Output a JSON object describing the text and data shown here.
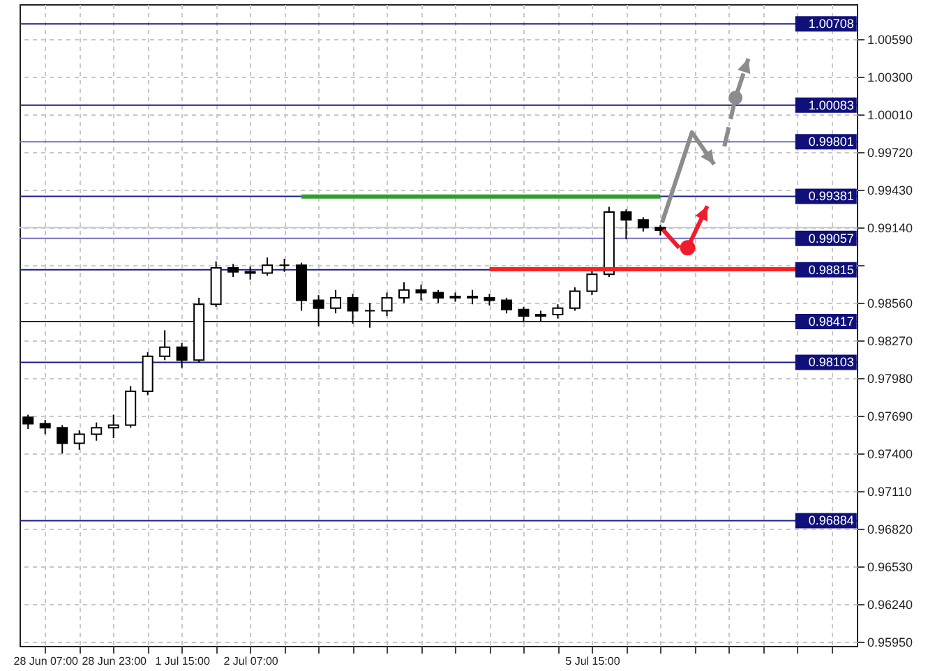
{
  "chart_data": {
    "type": "candlestick",
    "grid": true,
    "categories": [
      null,
      "28 Jun 07:00",
      null,
      null,
      null,
      "28 Jun 23:00",
      null,
      null,
      null,
      "1 Jul 15:00",
      null,
      null,
      null,
      "2 Jul 07:00",
      null,
      null,
      null,
      null,
      null,
      null,
      null,
      null,
      null,
      null,
      null,
      null,
      null,
      null,
      null,
      null,
      null,
      null,
      null,
      "5 Jul 15:00",
      null,
      null,
      null,
      null,
      null,
      null,
      null,
      null,
      null,
      null,
      null,
      null,
      null,
      null,
      null
    ],
    "ylim": [
      0.9592,
      1.0086
    ],
    "yticks": [
      {
        "value": 0.9595,
        "label": "0.95950"
      },
      {
        "value": 0.9624,
        "label": "0.96240"
      },
      {
        "value": 0.9653,
        "label": "0.96530"
      },
      {
        "value": 0.9682,
        "label": "0.96820"
      },
      {
        "value": 0.9711,
        "label": "0.97110"
      },
      {
        "value": 0.974,
        "label": "0.97400"
      },
      {
        "value": 0.9769,
        "label": "0.97690"
      },
      {
        "value": 0.9798,
        "label": "0.97980"
      },
      {
        "value": 0.9827,
        "label": "0.98270"
      },
      {
        "value": 0.9856,
        "label": "0.98560"
      },
      {
        "value": 0.9885,
        "label": null
      },
      {
        "value": 0.9914,
        "label": "0.99140"
      },
      {
        "value": 0.9943,
        "label": "0.99430"
      },
      {
        "value": 0.9972,
        "label": "0.99720"
      },
      {
        "value": 1.0001,
        "label": "1.00010"
      },
      {
        "value": 1.003,
        "label": "1.00300"
      },
      {
        "value": 1.0059,
        "label": "1.00590"
      }
    ],
    "ref_lines": [
      {
        "axis": "y",
        "value": 1.00708,
        "label": "1.00708",
        "color": "#1c1c8c"
      },
      {
        "axis": "y",
        "value": 1.00083,
        "label": "1.00083",
        "color": "#1c1c8c"
      },
      {
        "axis": "y",
        "value": 0.99801,
        "label": "0.99801",
        "color": "#7070c0"
      },
      {
        "axis": "y",
        "value": 0.99381,
        "label": "0.99381",
        "color": "#1c1c8c"
      },
      {
        "axis": "y",
        "value": 0.9914,
        "color": "#c8c8c8"
      },
      {
        "axis": "y",
        "value": 0.99057,
        "label": "0.99057",
        "color": "#7070c0"
      },
      {
        "axis": "y",
        "value": 0.98815,
        "label": "0.98815",
        "color": "#1c1c8c"
      },
      {
        "axis": "y",
        "value": 0.98417,
        "label": "0.98417",
        "color": "#1c1c8c"
      },
      {
        "axis": "y",
        "value": 0.98103,
        "label": "0.98103",
        "color": "#1c1c8c"
      },
      {
        "axis": "y",
        "value": 0.96884,
        "label": "0.96884",
        "color": "#1c1c8c"
      }
    ],
    "series": [
      {
        "color": "#000000",
        "ohlc": [
          [
            0.9768,
            0.977,
            0.9759,
            0.9763
          ],
          [
            0.9763,
            0.9766,
            0.9755,
            0.976
          ],
          [
            0.976,
            0.9762,
            0.974,
            0.9748
          ],
          [
            0.9748,
            0.9758,
            0.9743,
            0.9755
          ],
          [
            0.9755,
            0.9764,
            0.975,
            0.976
          ],
          [
            0.976,
            0.977,
            0.9752,
            0.9762
          ],
          [
            0.9762,
            0.9792,
            0.976,
            0.9788
          ],
          [
            0.9788,
            0.9818,
            0.9785,
            0.9815
          ],
          [
            0.9815,
            0.9835,
            0.9812,
            0.9822
          ],
          [
            0.9822,
            0.9825,
            0.9806,
            0.9812
          ],
          [
            0.9812,
            0.986,
            0.981,
            0.9855
          ],
          [
            0.9855,
            0.9888,
            0.9853,
            0.9883
          ],
          [
            0.9883,
            0.9886,
            0.9876,
            0.988
          ],
          [
            0.988,
            0.9884,
            0.9874,
            0.9879
          ],
          [
            0.9879,
            0.9891,
            0.9877,
            0.9885
          ],
          [
            0.9885,
            0.989,
            0.988,
            0.9885
          ],
          [
            0.9885,
            0.9887,
            0.985,
            0.9858
          ],
          [
            0.9858,
            0.9862,
            0.9838,
            0.9852
          ],
          [
            0.9852,
            0.9866,
            0.9848,
            0.986
          ],
          [
            0.986,
            0.9863,
            0.984,
            0.985
          ],
          [
            0.985,
            0.9856,
            0.9837,
            0.985
          ],
          [
            0.985,
            0.9864,
            0.9846,
            0.986
          ],
          [
            0.986,
            0.9872,
            0.9856,
            0.9866
          ],
          [
            0.9866,
            0.987,
            0.9858,
            0.9864
          ],
          [
            0.9864,
            0.9866,
            0.9856,
            0.986
          ],
          [
            0.986,
            0.9864,
            0.9857,
            0.9861
          ],
          [
            0.9861,
            0.9866,
            0.9855,
            0.986
          ],
          [
            0.986,
            0.9863,
            0.9854,
            0.9858
          ],
          [
            0.9858,
            0.986,
            0.9848,
            0.9851
          ],
          [
            0.9851,
            0.9853,
            0.9841,
            0.9846
          ],
          [
            0.9846,
            0.985,
            0.9842,
            0.9847
          ],
          [
            0.9847,
            0.9855,
            0.9844,
            0.9852
          ],
          [
            0.9852,
            0.9868,
            0.985,
            0.9865
          ],
          [
            0.9865,
            0.9882,
            0.9862,
            0.9878
          ],
          [
            0.9878,
            0.993,
            0.9876,
            0.9926
          ],
          [
            0.9926,
            0.9928,
            0.9905,
            0.992
          ],
          [
            0.992,
            0.9922,
            0.9911,
            0.9914
          ],
          [
            0.9914,
            0.9916,
            0.9908,
            0.9912
          ],
          null,
          null,
          null,
          null,
          null,
          null,
          null,
          null,
          null,
          null,
          null
        ]
      },
      {
        "type": "line",
        "color": "#2ca02c",
        "values": [
          null,
          null,
          null,
          null,
          null,
          null,
          null,
          null,
          null,
          null,
          null,
          null,
          null,
          null,
          null,
          null,
          0.9938,
          0.9938,
          0.9938,
          0.9938,
          0.9938,
          0.9938,
          0.9938,
          0.9938,
          0.9938,
          0.9938,
          0.9938,
          0.9938,
          0.9938,
          0.9938,
          0.9938,
          0.9938,
          0.9938,
          0.9938,
          0.9938,
          0.9938,
          0.9938,
          0.9938,
          null,
          null,
          null,
          null,
          null,
          null,
          null,
          null,
          null,
          null,
          null
        ]
      },
      {
        "type": "line",
        "color": "#ff2020",
        "values": [
          null,
          null,
          null,
          null,
          null,
          null,
          null,
          null,
          null,
          null,
          null,
          null,
          null,
          null,
          null,
          null,
          null,
          null,
          null,
          null,
          null,
          null,
          null,
          null,
          null,
          null,
          null,
          0.9882,
          0.9882,
          0.9882,
          0.9882,
          0.9882,
          0.9882,
          0.9882,
          0.9882,
          0.9882,
          0.9882,
          0.9882,
          0.9882,
          0.9882,
          0.9882,
          0.9882,
          0.9882,
          0.9882,
          0.9882,
          0.9882,
          null,
          null,
          null
        ]
      }
    ]
  }
}
